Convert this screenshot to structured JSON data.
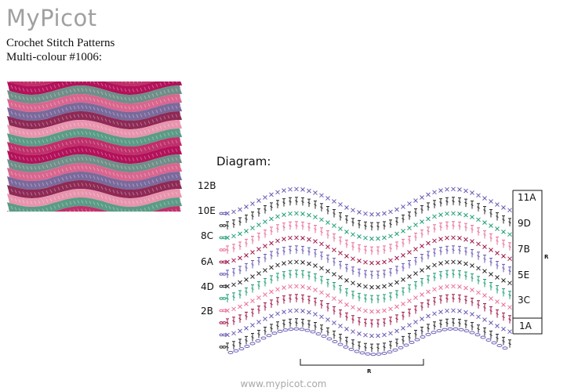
{
  "site": {
    "brand": "MyPicot",
    "footer": "www.mypicot.com"
  },
  "page": {
    "subtitle": "Crochet Stitch Patterns",
    "pattern_name": "Multi-colour #1006:",
    "diagram_heading": "Diagram:"
  },
  "colors": {
    "A": "#2a2a2a",
    "B": "#6a5bb5",
    "C": "#a0174c",
    "D": "#ea6f9c",
    "E": "#1f9d7a"
  },
  "swatch_colors": [
    "#b3125a",
    "#6f8f88",
    "#d9668f",
    "#7a6a9c",
    "#8e2a55",
    "#e894ae",
    "#5b9c86",
    "#c0306b"
  ],
  "diagram": {
    "left_row_labels": [
      "12B",
      "10E",
      "8C",
      "6A",
      "4D",
      "2B"
    ],
    "right_row_labels": [
      "11A",
      "9D",
      "7B",
      "5E",
      "3C",
      "1A"
    ],
    "repeat_label": "R",
    "row_colors": [
      "A",
      "B",
      "C",
      "D",
      "E",
      "A",
      "B",
      "C",
      "D",
      "E",
      "A",
      "B"
    ]
  }
}
